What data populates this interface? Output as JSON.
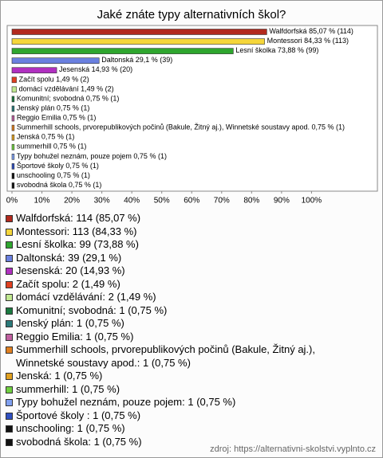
{
  "chart_data": {
    "type": "barh",
    "title": "Jaké znáte typy alternativních škol?",
    "categories": [
      "Walfdorfská",
      "Montessori",
      "Lesní školka",
      "Daltonská",
      "Jesenská",
      "Začít spolu",
      "domácí vzdělávání",
      "Komunitní; svobodná",
      "Jenský plán",
      "Reggio Emilia",
      "Summerhill schools, prvorepublikových počinů (Bakule, Žitný aj.), Winnetské soustavy apod.",
      "Jenská",
      "summerhill",
      "Typy bohužel neznám, pouze pojem",
      "Športové školy",
      "unschooling",
      "svobodná škola"
    ],
    "values": [
      85.07,
      84.33,
      73.88,
      29.1,
      14.93,
      1.49,
      1.49,
      0.75,
      0.75,
      0.75,
      0.75,
      0.75,
      0.75,
      0.75,
      0.75,
      0.75,
      0.75
    ],
    "value_labels": [
      "85,07 % (114)",
      "84,33 % (113)",
      "73,88 % (99)",
      "29,1 % (39)",
      "14,93 % (20)",
      "1,49 % (2)",
      "1,49 % (2)",
      "0,75 % (1)",
      "0,75 % (1)",
      "0,75 % (1)",
      "0,75 % (1)",
      "0,75 % (1)",
      "0,75 % (1)",
      "0,75 % (1)",
      "0,75 % (1)",
      "0,75 % (1)",
      "0,75 % (1)"
    ],
    "colors": [
      "#b22a1e",
      "#f5d63a",
      "#2ea62e",
      "#6a80e0",
      "#b030c0",
      "#e04020",
      "#c0e890",
      "#1a7a40",
      "#2a7a7a",
      "#c060a0",
      "#e08020",
      "#e0a020",
      "#70d040",
      "#80a0f0",
      "#3050c0",
      "#111111",
      "#111111"
    ],
    "legend_labels": [
      "Walfdorfská: 114 (85,07 %)",
      "Montessori: 113 (84,33 %)",
      "Lesní školka: 99 (73,88 %)",
      "Daltonská: 39 (29,1 %)",
      "Jesenská: 20 (14,93 %)",
      "Začít spolu: 2 (1,49 %)",
      "domácí vzdělávání: 2 (1,49 %)",
      "Komunitní; svobodná: 1 (0,75 %)",
      "Jenský plán: 1 (0,75 %)",
      "Reggio Emilia: 1 (0,75 %)",
      "Summerhill schools, prvorepublikových počinů (Bakule, Žitný aj.), Winnetské soustavy apod.: 1 (0,75 %)",
      "Jenská: 1 (0,75 %)",
      "summerhill: 1 (0,75 %)",
      "Typy bohužel neznám, pouze pojem: 1 (0,75 %)",
      "Športové školy : 1 (0,75 %)",
      "unschooling: 1 (0,75 %)",
      "svobodná škola: 1 (0,75 %)"
    ],
    "xlim": [
      0,
      122
    ],
    "xticks": [
      {
        "value": 0,
        "label": "0%"
      },
      {
        "value": 10,
        "label": "10%"
      },
      {
        "value": 20,
        "label": "20%"
      },
      {
        "value": 30,
        "label": "30%"
      },
      {
        "value": 40,
        "label": "40%"
      },
      {
        "value": 50,
        "label": "50%"
      },
      {
        "value": 60,
        "label": "60%"
      },
      {
        "value": 70,
        "label": "70%"
      },
      {
        "value": 80,
        "label": "80%"
      },
      {
        "value": 90,
        "label": "90%"
      },
      {
        "value": 100,
        "label": "100%"
      }
    ],
    "source": "zdroj: https://alternativni-skolstvi.vyplnto.cz"
  }
}
